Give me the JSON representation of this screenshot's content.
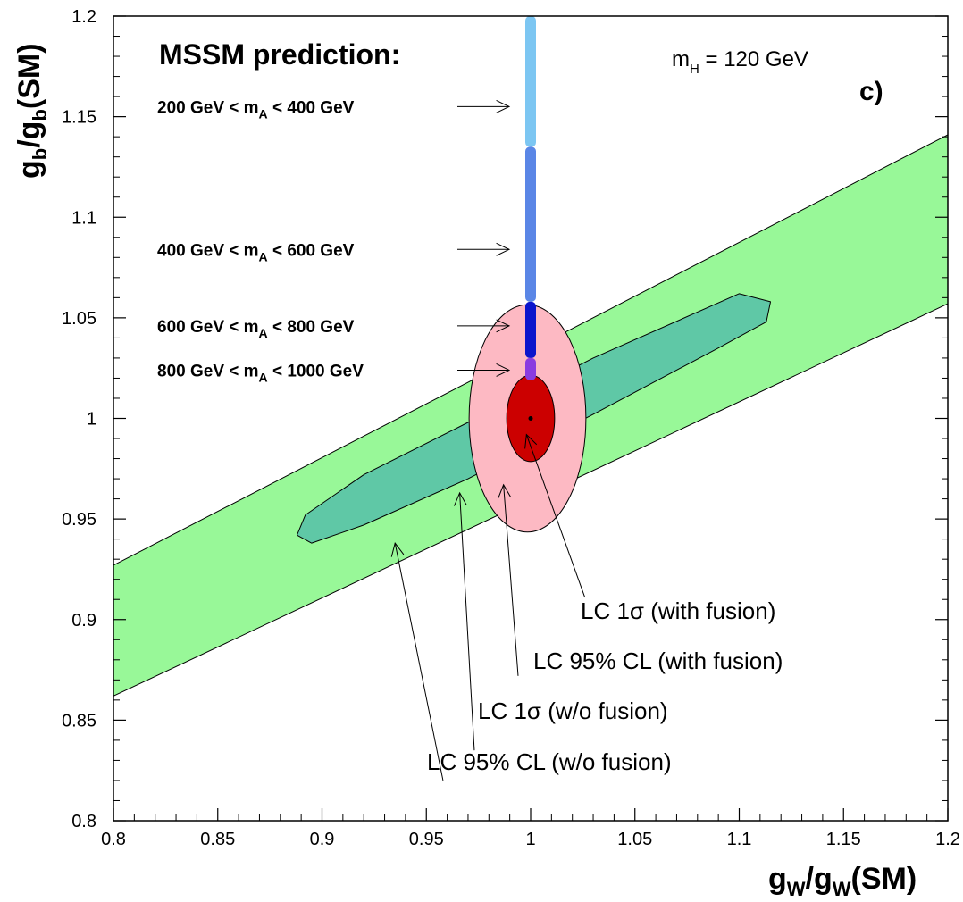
{
  "chart_data": {
    "type": "area",
    "xlabel_main": "g",
    "xlabel_sub": "W",
    "xlabel_mid": "/g",
    "xlabel_sub2": "W",
    "xlabel_end": "(SM)",
    "ylabel_main": "g",
    "ylabel_sub": "b",
    "ylabel_mid": "/g",
    "ylabel_sub2": "b",
    "ylabel_end": "(SM)",
    "xlim": [
      0.8,
      1.2
    ],
    "ylim": [
      0.8,
      1.2
    ],
    "x_ticks": [
      "0.8",
      "0.85",
      "0.9",
      "0.95",
      "1",
      "1.05",
      "1.1",
      "1.15",
      "1.2"
    ],
    "y_ticks": [
      "0.8",
      "0.85",
      "0.9",
      "0.95",
      "1",
      "1.05",
      "1.1",
      "1.15",
      "1.2"
    ],
    "title": "MSSM prediction:",
    "panel": "c)",
    "mh_text_pre": "m",
    "mh_sub": "H",
    "mh_text_post": " = 120 GeV",
    "sm_point": {
      "x": 1.0,
      "y": 1.0
    },
    "regions": [
      {
        "name": "LC 95% CL (w/o fusion)",
        "color": "#98f898",
        "outline": [
          [
            0.8,
            0.862
          ],
          [
            0.8,
            0.927
          ],
          [
            1.2,
            1.141
          ],
          [
            1.2,
            1.057
          ]
        ]
      },
      {
        "name": "LC 1σ (w/o fusion)",
        "color": "#5fc8a6",
        "outline": [
          [
            0.888,
            0.942
          ],
          [
            0.892,
            0.952
          ],
          [
            0.92,
            0.972
          ],
          [
            0.97,
            0.998
          ],
          [
            1.03,
            1.03
          ],
          [
            1.1,
            1.062
          ],
          [
            1.115,
            1.058
          ],
          [
            1.113,
            1.048
          ],
          [
            1.09,
            1.035
          ],
          [
            1.03,
            1.002
          ],
          [
            0.97,
            0.97
          ],
          [
            0.92,
            0.947
          ],
          [
            0.895,
            0.938
          ]
        ]
      },
      {
        "name": "LC 95% CL (with fusion)",
        "color": "#fdb9c3",
        "ellipse": {
          "cx": 0.9985,
          "cy": 1.0,
          "rx": 0.028,
          "ry": 0.0565
        }
      },
      {
        "name": "LC 1σ (with fusion)",
        "color": "#cc0000",
        "ellipse": {
          "cx": 1.0,
          "cy": 1.0,
          "rx": 0.0115,
          "ry": 0.0215
        }
      }
    ],
    "mssm_bands": [
      {
        "label_pre": "200 GeV < m",
        "label_sub": "A",
        "label_post": " < 400 GeV",
        "y_range": [
          1.135,
          1.2
        ],
        "color": "#7cc6f2",
        "arrow_y": 1.155
      },
      {
        "label_pre": "400 GeV < m",
        "label_sub": "A",
        "label_post": " < 600 GeV",
        "y_range": [
          1.058,
          1.135
        ],
        "color": "#5a86e6",
        "arrow_y": 1.084
      },
      {
        "label_pre": "600 GeV < m",
        "label_sub": "A",
        "label_post": " < 800 GeV",
        "y_range": [
          1.03,
          1.058
        ],
        "color": "#0a14cc",
        "arrow_y": 1.046
      },
      {
        "label_pre": "800 GeV < m",
        "label_sub": "A",
        "label_post": " < 1000 GeV",
        "y_range": [
          1.019,
          1.03
        ],
        "color": "#8a3ce0",
        "arrow_y": 1.024
      }
    ],
    "annotations": [
      {
        "text": "LC 1σ (with fusion)",
        "tip": [
          0.998,
          0.992
        ],
        "from": [
          1.026,
          0.911
        ]
      },
      {
        "text": "LC 95% CL (with fusion)",
        "tip": [
          0.987,
          0.967
        ],
        "from": [
          0.994,
          0.872
        ]
      },
      {
        "text": "LC 1σ (w/o fusion)",
        "tip": [
          0.966,
          0.963
        ],
        "from": [
          0.973,
          0.835
        ]
      },
      {
        "text": "LC 95% CL (w/o fusion)",
        "tip": [
          0.935,
          0.938
        ],
        "from": [
          0.958,
          0.82
        ]
      }
    ]
  }
}
